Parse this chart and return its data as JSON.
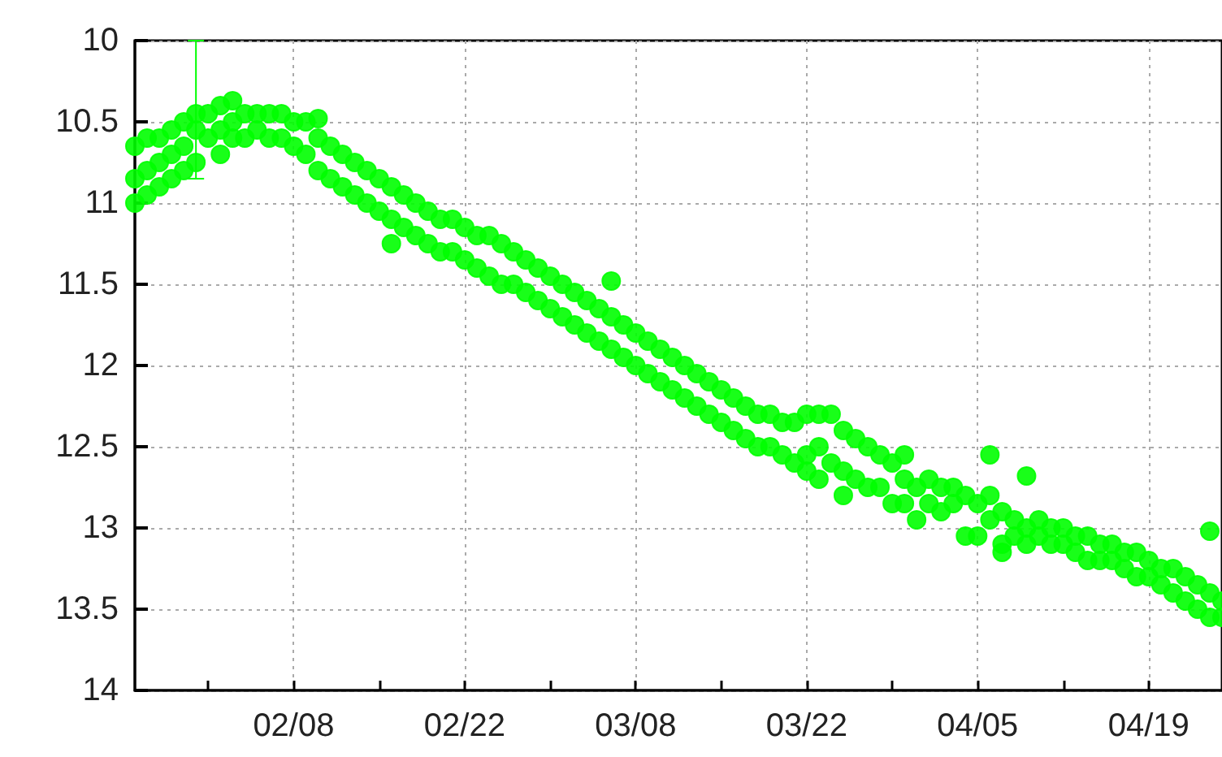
{
  "chart_data": {
    "type": "scatter",
    "marker": "circle",
    "grid": true,
    "xlim": [
      "--01-26",
      "--04-25"
    ],
    "xticks": [
      {
        "value": "--02-01",
        "label": null
      },
      {
        "value": "--02-08",
        "label": "02/08"
      },
      {
        "value": "--02-15",
        "label": null
      },
      {
        "value": "--02-22",
        "label": "02/22"
      },
      {
        "value": "--03-01",
        "label": null
      },
      {
        "value": "--03-08",
        "label": "03/08"
      },
      {
        "value": "--03-15",
        "label": null
      },
      {
        "value": "--03-22",
        "label": "03/22"
      },
      {
        "value": "--03-29",
        "label": null
      },
      {
        "value": "--04-05",
        "label": "04/05"
      },
      {
        "value": "--04-12",
        "label": null
      },
      {
        "value": "--04-19",
        "label": "04/19"
      }
    ],
    "ylim": [
      14,
      10
    ],
    "yticks": [
      10,
      10.5,
      11,
      11.5,
      12,
      12.5,
      13,
      13.5,
      14
    ],
    "series": [
      {
        "color": "#00ff00",
        "x": [
          "--01-26",
          "--01-26",
          "--01-26",
          "--01-27",
          "--01-27",
          "--01-27",
          "--01-28",
          "--01-28",
          "--01-28",
          "--01-29",
          "--01-29",
          "--01-29",
          "--01-30",
          "--01-30",
          "--01-30",
          "--01-31",
          "--01-31",
          "--02-01",
          "--02-01",
          "--02-02",
          "--02-02",
          "--02-02",
          "--02-03",
          "--02-03",
          "--02-03",
          "--02-04",
          "--02-04",
          "--02-05",
          "--02-05",
          "--02-06",
          "--02-06",
          "--02-07",
          "--02-07",
          "--02-08",
          "--02-08",
          "--02-09",
          "--02-09",
          "--02-10",
          "--02-10",
          "--02-10",
          "--02-11",
          "--02-11",
          "--02-12",
          "--02-12",
          "--02-13",
          "--02-13",
          "--02-14",
          "--02-14",
          "--02-15",
          "--02-15",
          "--02-16",
          "--02-16",
          "--02-16",
          "--02-17",
          "--02-17",
          "--02-18",
          "--02-18",
          "--02-19",
          "--02-19",
          "--02-20",
          "--02-20",
          "--02-21",
          "--02-21",
          "--02-22",
          "--02-22",
          "--02-23",
          "--02-23",
          "--02-24",
          "--02-24",
          "--02-25",
          "--02-25",
          "--02-26",
          "--02-26",
          "--02-27",
          "--02-27",
          "--02-28",
          "--02-28",
          "--03-01",
          "--03-01",
          "--03-02",
          "--03-02",
          "--03-03",
          "--03-03",
          "--03-04",
          "--03-04",
          "--03-05",
          "--03-05",
          "--03-06",
          "--03-06",
          "--03-06",
          "--03-07",
          "--03-07",
          "--03-08",
          "--03-08",
          "--03-09",
          "--03-09",
          "--03-10",
          "--03-10",
          "--03-11",
          "--03-11",
          "--03-12",
          "--03-12",
          "--03-13",
          "--03-13",
          "--03-14",
          "--03-14",
          "--03-15",
          "--03-15",
          "--03-16",
          "--03-16",
          "--03-17",
          "--03-17",
          "--03-18",
          "--03-18",
          "--03-19",
          "--03-19",
          "--03-20",
          "--03-20",
          "--03-21",
          "--03-21",
          "--03-22",
          "--03-22",
          "--03-22",
          "--03-23",
          "--03-23",
          "--03-23",
          "--03-24",
          "--03-24",
          "--03-25",
          "--03-25",
          "--03-25",
          "--03-26",
          "--03-26",
          "--03-27",
          "--03-27",
          "--03-28",
          "--03-28",
          "--03-29",
          "--03-29",
          "--03-30",
          "--03-30",
          "--03-30",
          "--03-31",
          "--03-31",
          "--04-01",
          "--04-01",
          "--04-02",
          "--04-02",
          "--04-03",
          "--04-03",
          "--04-04",
          "--04-04",
          "--04-05",
          "--04-05",
          "--04-06",
          "--04-06",
          "--04-06",
          "--04-07",
          "--04-07",
          "--04-07",
          "--04-08",
          "--04-08",
          "--04-09",
          "--04-09",
          "--04-09",
          "--04-10",
          "--04-10",
          "--04-11",
          "--04-11",
          "--04-12",
          "--04-12",
          "--04-13",
          "--04-13",
          "--04-14",
          "--04-14",
          "--04-15",
          "--04-15",
          "--04-16",
          "--04-16",
          "--04-17",
          "--04-17",
          "--04-18",
          "--04-18",
          "--04-19",
          "--04-19",
          "--04-20",
          "--04-20",
          "--04-21",
          "--04-21",
          "--04-22",
          "--04-22",
          "--04-23",
          "--04-23",
          "--04-24",
          "--04-24",
          "--04-24",
          "--04-25",
          "--04-25"
        ],
        "values": [
          10.65,
          10.85,
          11.0,
          10.6,
          10.8,
          10.95,
          10.6,
          10.75,
          10.9,
          10.55,
          10.7,
          10.85,
          10.5,
          10.65,
          10.8,
          10.45,
          10.75,
          10.45,
          10.6,
          10.4,
          10.55,
          10.7,
          10.37,
          10.5,
          10.6,
          10.45,
          10.6,
          10.45,
          10.55,
          10.45,
          10.6,
          10.45,
          10.6,
          10.5,
          10.65,
          10.5,
          10.7,
          10.48,
          10.6,
          10.8,
          10.65,
          10.85,
          10.7,
          10.9,
          10.75,
          10.95,
          10.8,
          11.0,
          10.85,
          11.05,
          10.9,
          11.1,
          11.25,
          10.95,
          11.15,
          11.0,
          11.2,
          11.05,
          11.25,
          11.1,
          11.3,
          11.1,
          11.3,
          11.15,
          11.35,
          11.2,
          11.4,
          11.2,
          11.45,
          11.25,
          11.5,
          11.3,
          11.5,
          11.35,
          11.55,
          11.4,
          11.6,
          11.45,
          11.65,
          11.5,
          11.7,
          11.55,
          11.75,
          11.6,
          11.8,
          11.65,
          11.85,
          11.7,
          11.9,
          11.48,
          11.75,
          11.95,
          11.8,
          12.0,
          11.85,
          12.05,
          11.9,
          12.1,
          11.95,
          12.15,
          12.0,
          12.2,
          12.05,
          12.25,
          12.1,
          12.3,
          12.15,
          12.35,
          12.2,
          12.4,
          12.25,
          12.45,
          12.3,
          12.5,
          12.3,
          12.5,
          12.35,
          12.55,
          12.35,
          12.6,
          12.3,
          12.55,
          12.65,
          12.3,
          12.5,
          12.7,
          12.3,
          12.6,
          12.4,
          12.65,
          12.8,
          12.45,
          12.7,
          12.5,
          12.75,
          12.55,
          12.75,
          12.6,
          12.85,
          12.55,
          12.7,
          12.85,
          12.75,
          12.95,
          12.7,
          12.85,
          12.75,
          12.9,
          12.75,
          12.85,
          12.8,
          13.05,
          12.85,
          13.05,
          12.55,
          12.8,
          12.95,
          12.9,
          13.1,
          13.15,
          12.95,
          13.05,
          12.68,
          13.0,
          13.1,
          12.95,
          13.05,
          13.0,
          13.1,
          13.0,
          13.1,
          13.05,
          13.15,
          13.05,
          13.2,
          13.1,
          13.2,
          13.1,
          13.2,
          13.15,
          13.25,
          13.15,
          13.3,
          13.2,
          13.3,
          13.25,
          13.35,
          13.25,
          13.4,
          13.3,
          13.45,
          13.35,
          13.5,
          13.4,
          13.55,
          13.02,
          13.45,
          13.55
        ]
      },
      {
        "color": "#00ff00",
        "x": [
          "--01-31"
        ],
        "values": [
          10.55
        ],
        "errors": [
          [
            10.0,
            10.85
          ]
        ]
      }
    ]
  }
}
